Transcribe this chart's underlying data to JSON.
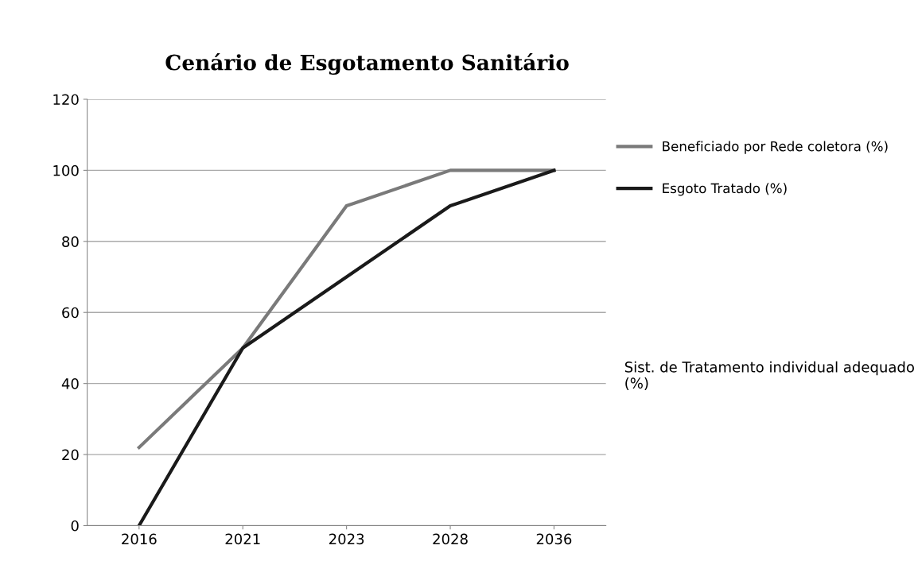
{
  "chart_data": {
    "type": "line",
    "title": "Cenário de Esgotamento Sanitário",
    "categories": [
      "2016",
      "2021",
      "2023",
      "2028",
      "2036"
    ],
    "series": [
      {
        "name": "Beneficiado por Rede coletora (%)",
        "color": "#7a7a7a",
        "values": [
          22,
          50,
          90,
          100,
          100
        ]
      },
      {
        "name": "Esgoto Tratado (%)",
        "color": "#1a1a1a",
        "values": [
          0,
          50,
          70,
          90,
          100
        ]
      }
    ],
    "ylim": [
      0,
      120
    ],
    "yticks": [
      0,
      20,
      40,
      60,
      80,
      100,
      120
    ],
    "grid": "y",
    "legend": "right",
    "marker": "none",
    "line_style": "solid",
    "annotations": [
      "Sist. de Tratamento individual adequado (%)"
    ]
  }
}
